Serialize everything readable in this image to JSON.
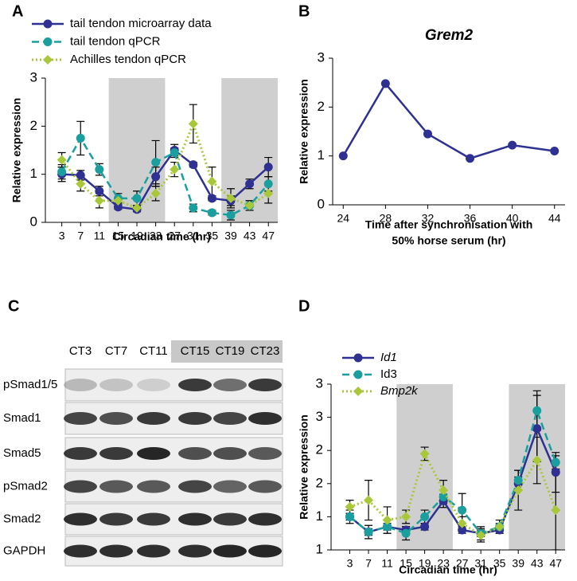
{
  "chart_data": [
    {
      "type": "line",
      "label": "A",
      "xlabel": "Circadian time (hr)",
      "ylabel": "Relative expression",
      "x": [
        3,
        7,
        11,
        15,
        19,
        23,
        27,
        31,
        35,
        39,
        43,
        47
      ],
      "xlim": [
        -0.5,
        49
      ],
      "xticks": [
        3,
        7,
        11,
        15,
        19,
        23,
        27,
        31,
        35,
        39,
        43,
        47
      ],
      "ylim": [
        0,
        3
      ],
      "yticks": [
        0,
        1,
        2,
        3
      ],
      "shaded": [
        [
          13,
          25
        ],
        [
          37,
          49
        ]
      ],
      "legend": "top",
      "series": [
        {
          "name": "tail tendon microarray data",
          "color": "#2e3192",
          "dash": "solid",
          "marker": "circle",
          "values": [
            1.0,
            0.98,
            0.65,
            0.32,
            0.27,
            0.95,
            1.5,
            1.2,
            0.5,
            0.45,
            0.8,
            1.15
          ],
          "errors": [
            0.15,
            0.1,
            0.1,
            0.05,
            0.05,
            0.2,
            0.12,
            0.05,
            0.05,
            0.1,
            0.1,
            0.2
          ]
        },
        {
          "name": "tail tendon qPCR",
          "color": "#1b9e9e",
          "dash": "dashed",
          "marker": "circle",
          "values": [
            1.05,
            1.75,
            1.1,
            0.5,
            0.5,
            1.25,
            1.45,
            0.3,
            0.2,
            0.15,
            0.35,
            0.8
          ],
          "errors": [
            0.15,
            0.35,
            0.12,
            0.1,
            0.15,
            0.45,
            0.1,
            0.08,
            0.05,
            0.1,
            0.1,
            0.15
          ]
        },
        {
          "name": "Achilles tendon qPCR",
          "color": "#a8c83a",
          "dash": "dotted",
          "marker": "diamond",
          "values": [
            1.3,
            0.8,
            0.45,
            0.45,
            0.3,
            0.6,
            1.1,
            2.05,
            0.85,
            0.5,
            0.35,
            0.6
          ],
          "errors": [
            0.15,
            0.15,
            0.15,
            0.05,
            0.05,
            0.15,
            0.15,
            0.4,
            0.3,
            0.2,
            0.1,
            0.2
          ]
        }
      ]
    },
    {
      "type": "line",
      "label": "B",
      "title": "Grem2",
      "xlabel": [
        "Time after synchronisation with",
        "50% horse serum (hr)"
      ],
      "ylabel": "Relative expression",
      "x": [
        24,
        28,
        32,
        36,
        40,
        44
      ],
      "xlim": [
        23,
        45
      ],
      "xticks": [
        24,
        28,
        32,
        36,
        40,
        44
      ],
      "ylim": [
        0,
        3
      ],
      "yticks": [
        0,
        1,
        2,
        3
      ],
      "series": [
        {
          "color": "#2e3192",
          "dash": "solid",
          "marker": "circle",
          "values": [
            1.0,
            2.48,
            1.45,
            0.95,
            1.22,
            1.1
          ]
        }
      ]
    },
    {
      "type": "line",
      "label": "D",
      "xlabel": "Circadian time (hr)",
      "ylabel": "Relative expression",
      "x": [
        3,
        7,
        11,
        15,
        19,
        23,
        27,
        31,
        35,
        39,
        43,
        47
      ],
      "xlim": [
        -1,
        49
      ],
      "xticks": [
        3,
        7,
        11,
        15,
        19,
        23,
        27,
        31,
        35,
        39,
        43,
        47
      ],
      "ylim": [
        0.5,
        3
      ],
      "yticks": [
        {
          "value": 0.5,
          "label": "1"
        },
        1,
        {
          "value": 1.5,
          "label": "2"
        },
        2,
        {
          "value": 2.5,
          "label": "3"
        },
        3
      ],
      "shaded": [
        [
          13,
          25
        ],
        [
          37,
          49
        ]
      ],
      "legend": "top-left",
      "series": [
        {
          "name": "Id1",
          "italic": true,
          "color": "#2e3192",
          "dash": "solid",
          "marker": "circle",
          "values": [
            1.0,
            0.77,
            0.85,
            0.8,
            0.85,
            1.24,
            0.8,
            0.75,
            0.8,
            1.5,
            2.33,
            1.67
          ],
          "errors": [
            0.05,
            0.05,
            0.05,
            0.05,
            0.05,
            0.1,
            0.05,
            0.05,
            0.05,
            0.1,
            0.5,
            0.3
          ]
        },
        {
          "name": "Id3",
          "italic": false,
          "color": "#1b9e9e",
          "dash": "dashed",
          "marker": "circle",
          "values": [
            1.0,
            0.77,
            0.85,
            0.75,
            1.0,
            1.3,
            1.1,
            0.75,
            0.85,
            1.55,
            2.6,
            1.82
          ],
          "errors": [
            0.1,
            0.1,
            0.1,
            0.1,
            0.1,
            0.1,
            0.25,
            0.1,
            0.1,
            0.15,
            0.3,
            0.1
          ]
        },
        {
          "name": "Bmp2k",
          "italic": true,
          "color": "#a8c83a",
          "dash": "dotted",
          "marker": "diamond",
          "values": [
            1.15,
            1.25,
            0.95,
            1.0,
            1.95,
            1.4,
            0.9,
            0.72,
            0.85,
            1.4,
            1.85,
            1.1
          ],
          "errors": [
            0.1,
            0.3,
            0.2,
            0.1,
            0.1,
            0.15,
            0.1,
            0.1,
            0.05,
            0.3,
            0.35,
            0.6
          ]
        }
      ]
    }
  ],
  "blot": {
    "label": "C",
    "lanes": [
      "CT3",
      "CT7",
      "CT11",
      "CT15",
      "CT19",
      "CT23"
    ],
    "rows": [
      "pSmad1/5",
      "Smad1",
      "Smad5",
      "pSmad2",
      "Smad2",
      "GAPDH"
    ]
  }
}
